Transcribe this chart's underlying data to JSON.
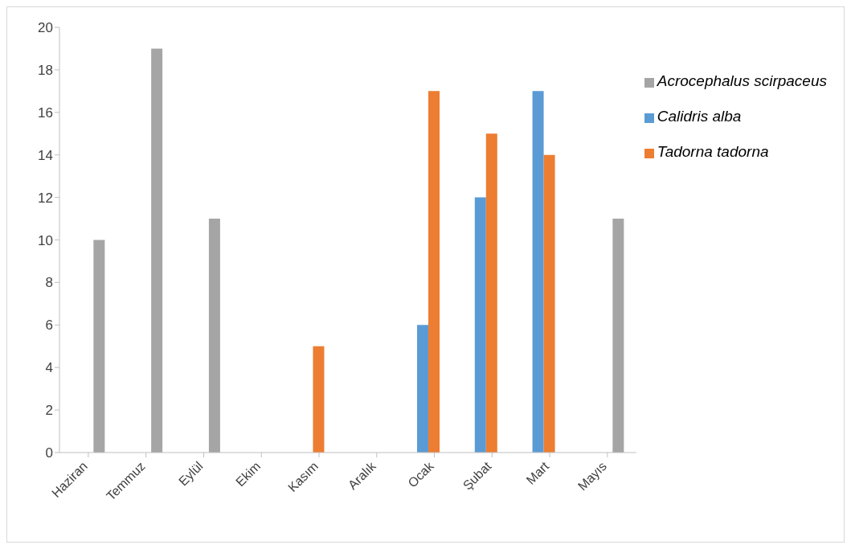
{
  "chart_data": {
    "type": "bar",
    "categories": [
      "Haziran",
      "Temmuz",
      "Eylül",
      "Ekim",
      "Kasım",
      "Aralık",
      "Ocak",
      "Şubat",
      "Mart",
      "Mayıs"
    ],
    "series": [
      {
        "name": "Calidris alba",
        "color": "#5b9bd5",
        "values": [
          0,
          0,
          0,
          0,
          0,
          0,
          6,
          12,
          17,
          0
        ]
      },
      {
        "name": "Tadorna tadorna",
        "color": "#ed7d31",
        "values": [
          0,
          0,
          0,
          0,
          5,
          0,
          17,
          15,
          14,
          0
        ]
      },
      {
        "name": "Acrocephalus scirpaceus",
        "color": "#a5a5a5",
        "values": [
          10,
          19,
          11,
          0,
          0,
          0,
          0,
          0,
          0,
          11
        ]
      }
    ],
    "ylim": [
      0,
      20
    ],
    "yticks": [
      0,
      2,
      4,
      6,
      8,
      10,
      12,
      14,
      16,
      18,
      20
    ],
    "grid": false,
    "legend": "right"
  }
}
